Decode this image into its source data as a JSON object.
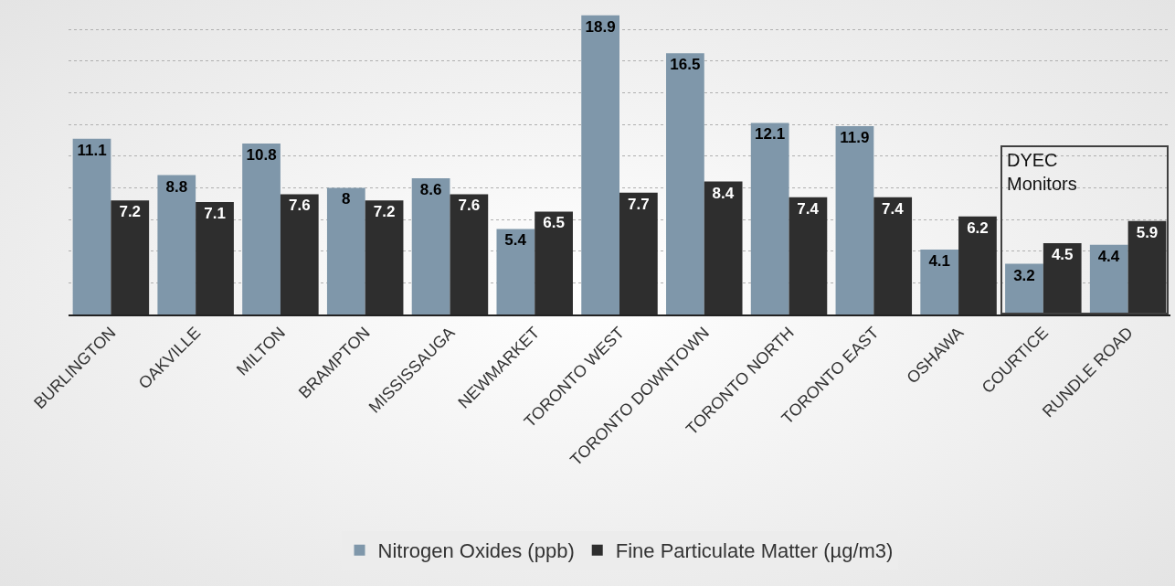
{
  "chart_data": {
    "type": "bar",
    "categories": [
      "BURLINGTON",
      "OAKVILLE",
      "MILTON",
      "BRAMPTON",
      "MISSISSAUGA",
      "NEWMARKET",
      "TORONTO WEST",
      "TORONTO DOWNTOWN",
      "TORONTO NORTH",
      "TORONTO EAST",
      "OSHAWA",
      "COURTICE",
      "RUNDLE ROAD"
    ],
    "series": [
      {
        "name": "Nitrogen Oxides (ppb)",
        "color": "#7f97aa",
        "values": [
          11.1,
          8.8,
          10.8,
          8,
          8.6,
          5.4,
          18.9,
          16.5,
          12.1,
          11.9,
          4.1,
          3.2,
          4.4
        ]
      },
      {
        "name": "Fine Particulate Matter (µg/m3)",
        "color": "#2e2e2e",
        "values": [
          7.2,
          7.1,
          7.6,
          7.2,
          7.6,
          6.5,
          7.7,
          8.4,
          7.4,
          7.4,
          6.2,
          4.5,
          5.9
        ]
      }
    ],
    "ylim": [
      0,
      19
    ],
    "yticks": [
      {
        "value": 0,
        "label": null
      },
      {
        "value": 2,
        "label": null
      },
      {
        "value": 4,
        "label": null
      },
      {
        "value": 6,
        "label": null
      },
      {
        "value": 8,
        "label": null
      },
      {
        "value": 10,
        "label": null
      },
      {
        "value": 12,
        "label": null
      },
      {
        "value": 14,
        "label": null
      },
      {
        "value": 16,
        "label": null
      },
      {
        "value": 18,
        "label": null
      }
    ],
    "tick_labels": "x",
    "grid": "y",
    "data_labels": true,
    "legend": "bottom",
    "annotations": [
      "DYEC Monitors"
    ]
  }
}
